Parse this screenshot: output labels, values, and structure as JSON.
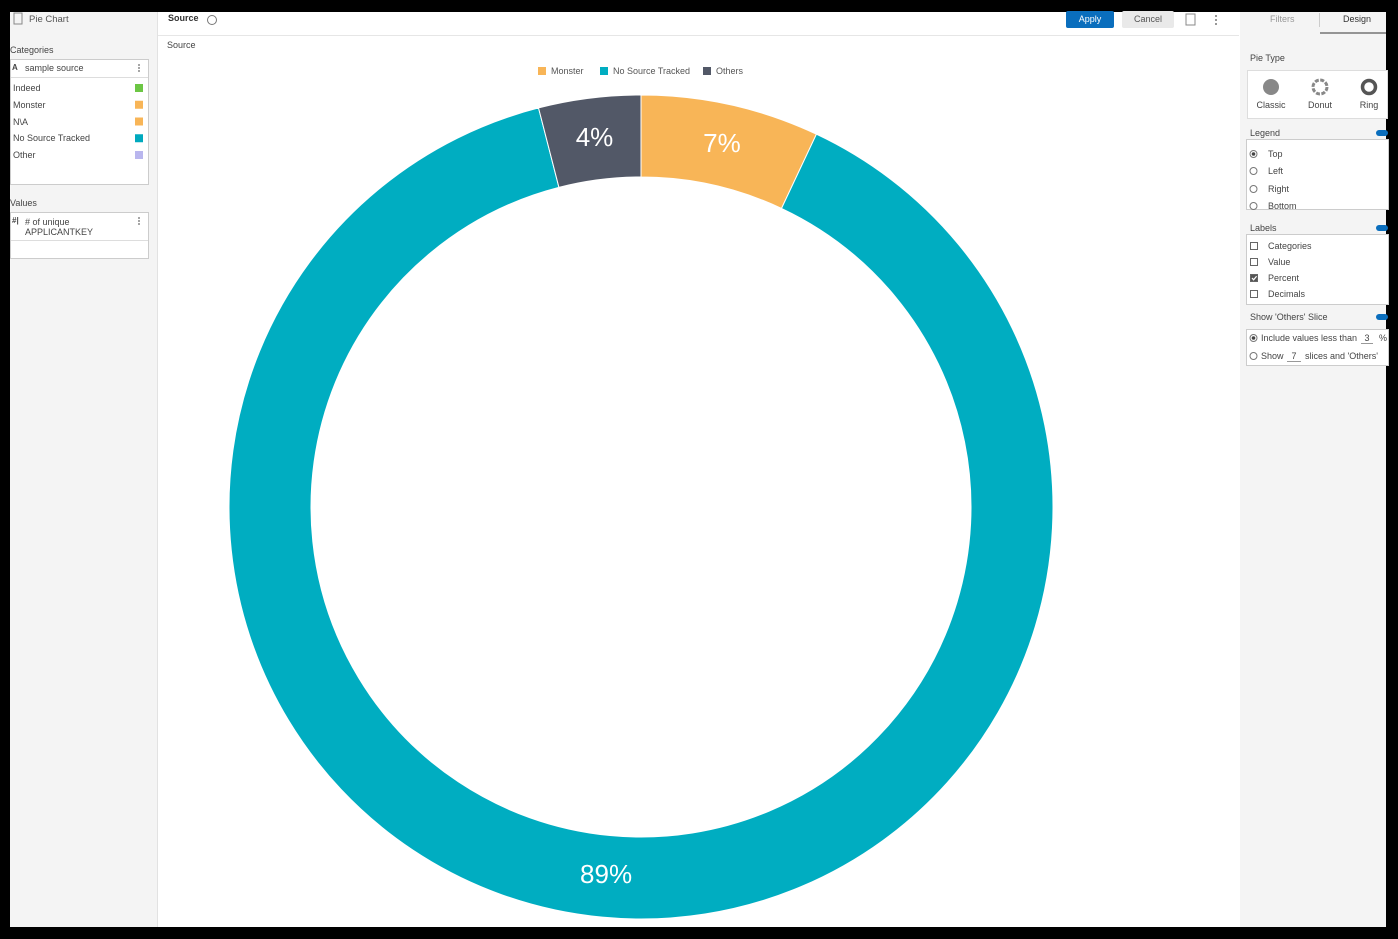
{
  "left_panel": {
    "title": "Pie Chart",
    "categories": {
      "heading": "Categories",
      "field_icon": "A",
      "field": "sample source",
      "items": [
        {
          "label": "Indeed",
          "color": "#6cc644"
        },
        {
          "label": "Monster",
          "color": "#f8b557"
        },
        {
          "label": "N\\A",
          "color": "#f8b557"
        },
        {
          "label": "No Source Tracked",
          "color": "#00a9be"
        },
        {
          "label": "Other",
          "color": "#b9b6ee"
        }
      ]
    },
    "values": {
      "heading": "Values",
      "field_icon": "#|",
      "field": "# of unique APPLICANTKEY"
    }
  },
  "header": {
    "title": "Source",
    "apply": "Apply",
    "cancel": "Cancel"
  },
  "chart_data": {
    "type": "donut",
    "title": "Source",
    "categories": [
      "Monster",
      "No Source Tracked",
      "Others"
    ],
    "values": [
      7,
      89,
      4
    ],
    "value_labels": [
      "7%",
      "89%",
      "4%"
    ],
    "colors": [
      "#f8b557",
      "#00adc1",
      "#525867"
    ],
    "legend": "top"
  },
  "right_panel": {
    "tabs": [
      "Filters",
      "Design"
    ],
    "pie_type": {
      "heading": "Pie Type",
      "options": [
        "Classic",
        "Donut",
        "Ring"
      ]
    },
    "legend": {
      "heading": "Legend",
      "options": [
        {
          "label": "Top",
          "checked": true
        },
        {
          "label": "Left",
          "checked": false
        },
        {
          "label": "Right",
          "checked": false
        },
        {
          "label": "Bottom",
          "checked": false
        }
      ]
    },
    "labels": {
      "heading": "Labels",
      "options": [
        {
          "label": "Categories",
          "checked": false
        },
        {
          "label": "Value",
          "checked": false
        },
        {
          "label": "Percent",
          "checked": true
        },
        {
          "label": "Decimals",
          "checked": false
        }
      ]
    },
    "others": {
      "heading": "Show 'Others' Slice",
      "include_checked": true,
      "include_prefix": "Include values less than",
      "include_value": 3,
      "include_suffix": "%",
      "show_checked": false,
      "show_prefix": "Show",
      "show_value": 7,
      "show_suffix": "slices and 'Others'"
    }
  }
}
